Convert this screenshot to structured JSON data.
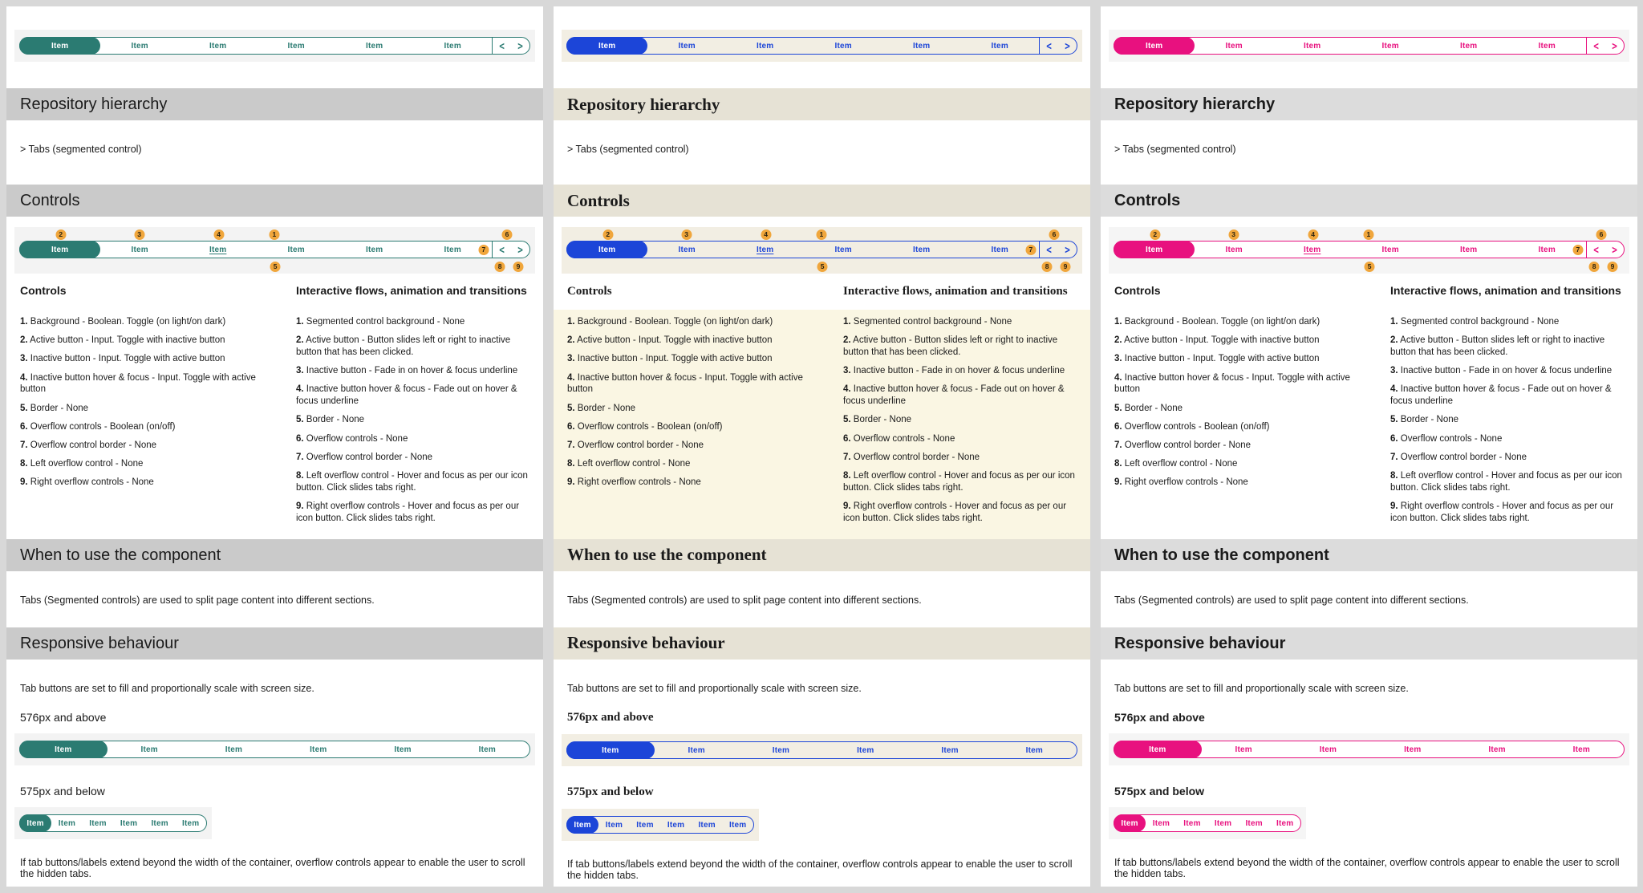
{
  "themes": [
    {
      "name": "teal",
      "accent": "#2b7b72",
      "band_bg": "#cacaca",
      "strip_bg": "#f3f3f3",
      "bar_bg": "#ffffff",
      "list_bg": "#ffffff"
    },
    {
      "name": "blue",
      "accent": "#1c45d8",
      "band_bg": "#e6e2d5",
      "strip_bg": "#f2eee3",
      "bar_bg": "#f2eee3",
      "list_bg": "#faf6e3"
    },
    {
      "name": "pink",
      "accent": "#e8117f",
      "band_bg": "#dcdcdc",
      "strip_bg": "#f5f5f5",
      "bar_bg": "#ffffff",
      "list_bg": "#ffffff"
    }
  ],
  "badge_color": "#f0a63c",
  "shared": {
    "tab_label": "Item",
    "overflow": {
      "prev": "<",
      "next": ">"
    },
    "badge_numbers": [
      "1",
      "2",
      "3",
      "4",
      "5",
      "6",
      "7",
      "8",
      "9"
    ],
    "repository": {
      "title": "Repository hierarchy",
      "breadcrumb": "> Tabs (segmented control)"
    },
    "controls_section": {
      "title": "Controls",
      "subhead_left": "Controls",
      "subhead_right": "Interactive flows, animation and transitions",
      "controls_list": [
        {
          "num": "1.",
          "text": " Background - Boolean. Toggle (on light/on dark)"
        },
        {
          "num": "2.",
          "text": " Active button - Input. Toggle with inactive button"
        },
        {
          "num": "3.",
          "text": " Inactive button - Input. Toggle with active button"
        },
        {
          "num": "4.",
          "text": " Inactive button hover & focus - Input. Toggle with active button"
        },
        {
          "num": "5.",
          "text": " Border - None"
        },
        {
          "num": "6.",
          "text": " Overflow controls - Boolean (on/off)"
        },
        {
          "num": "7.",
          "text": " Overflow control border - None"
        },
        {
          "num": "8.",
          "text": " Left overflow control - None"
        },
        {
          "num": "9.",
          "text": " Right overflow controls - None"
        }
      ],
      "interactions_list": [
        {
          "num": "1.",
          "text": " Segmented control background - None"
        },
        {
          "num": "2.",
          "text": " Active button - Button slides left or right to inactive button that has been clicked."
        },
        {
          "num": "3.",
          "text": " Inactive button - Fade in on hover & focus underline"
        },
        {
          "num": "4.",
          "text": " Inactive button hover & focus - Fade out on hover & focus underline"
        },
        {
          "num": "5.",
          "text": " Border - None"
        },
        {
          "num": "6.",
          "text": " Overflow controls - None"
        },
        {
          "num": "7.",
          "text": " Overflow control border - None"
        },
        {
          "num": "8.",
          "text": " Left overflow control - Hover and focus as per our icon button. Click slides tabs right."
        },
        {
          "num": "9.",
          "text": " Right overflow controls - Hover and focus as per our icon button. Click slides tabs right."
        }
      ]
    },
    "when_to_use": {
      "title": "When to use the component",
      "body": "Tabs (Segmented controls) are used to split page content into different sections."
    },
    "responsive": {
      "title": "Responsive behaviour",
      "body": "Tab buttons are set to fill and proportionally scale with screen size.",
      "bp_above": "576px and above",
      "bp_below": "575px and below",
      "note": "If tab buttons/labels extend beyond the width of the container, overflow controls appear to enable the user to scroll the hidden tabs."
    }
  }
}
